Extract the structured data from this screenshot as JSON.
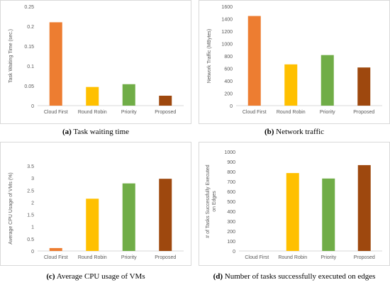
{
  "chart_data": [
    {
      "id": "a",
      "type": "bar",
      "title": "",
      "caption_letter": "(a)",
      "caption_text": "Task waiting time",
      "categories": [
        "Cloud First",
        "Round Robin",
        "Priority",
        "Proposed"
      ],
      "values": [
        0.21,
        0.047,
        0.054,
        0.025
      ],
      "colors": [
        "#ED7D31",
        "#FFC000",
        "#70AD47",
        "#9E480E"
      ],
      "xlabel": "",
      "ylabel": "Task Waiting Time (sec.)",
      "ylim": [
        0,
        0.25
      ],
      "yticks": [
        0,
        0.05,
        0.1,
        0.15,
        0.2,
        0.25
      ],
      "ytick_labels": [
        "0",
        "0.05",
        "0.1",
        "0.15",
        "0.2",
        "0.25"
      ],
      "grid": false,
      "legend": "none"
    },
    {
      "id": "b",
      "type": "bar",
      "title": "",
      "caption_letter": "(b)",
      "caption_text": "Network traffic",
      "categories": [
        "Cloud First",
        "Round Robin",
        "Priority",
        "Proposed"
      ],
      "values": [
        1445,
        665,
        815,
        615
      ],
      "colors": [
        "#ED7D31",
        "#FFC000",
        "#70AD47",
        "#9E480E"
      ],
      "xlabel": "",
      "ylabel": "Network Traffic (MBytes)",
      "ylim": [
        0,
        1600
      ],
      "yticks": [
        0,
        200,
        400,
        600,
        800,
        1000,
        1200,
        1400,
        1600
      ],
      "ytick_labels": [
        "0",
        "200",
        "400",
        "600",
        "800",
        "1000",
        "1200",
        "1400",
        "1600"
      ],
      "grid": false,
      "legend": "none"
    },
    {
      "id": "c",
      "type": "bar",
      "title": "",
      "caption_letter": "(c)",
      "caption_text": "Average CPU usage of VMs",
      "categories": [
        "Cloud First",
        "Round Robin",
        "Priority",
        "Proposed"
      ],
      "values": [
        0.12,
        2.15,
        2.78,
        2.97
      ],
      "colors": [
        "#ED7D31",
        "#FFC000",
        "#70AD47",
        "#9E480E"
      ],
      "xlabel": "",
      "ylabel": "Average CPU Usage of VMs (%)",
      "ylim": [
        0,
        3.5
      ],
      "yticks": [
        0,
        0.5,
        1,
        1.5,
        2,
        2.5,
        3,
        3.5
      ],
      "ytick_labels": [
        "0",
        "0.5",
        "1",
        "1.5",
        "2",
        "2.5",
        "3",
        "3.5"
      ],
      "grid": false,
      "legend": "none"
    },
    {
      "id": "d",
      "type": "bar",
      "title": "",
      "caption_letter": "(d)",
      "caption_text": "Number of tasks successfully executed on edges",
      "categories": [
        "Cloud First",
        "Round Robin",
        "Priority",
        "Proposed"
      ],
      "values": [
        0,
        785,
        730,
        865
      ],
      "colors": [
        "#ED7D31",
        "#FFC000",
        "#70AD47",
        "#9E480E"
      ],
      "xlabel": "",
      "ylabel": "# of Tasks Successfully Executed on Edges",
      "ylabel_lines": [
        "# of Tasks Successfully Executed",
        "on Edges"
      ],
      "ylim": [
        0,
        1000
      ],
      "yticks": [
        0,
        100,
        200,
        300,
        400,
        500,
        600,
        700,
        800,
        900,
        1000
      ],
      "ytick_labels": [
        "0",
        "100",
        "200",
        "300",
        "400",
        "500",
        "600",
        "700",
        "800",
        "900",
        "1000"
      ],
      "grid": false,
      "legend": "none"
    }
  ]
}
